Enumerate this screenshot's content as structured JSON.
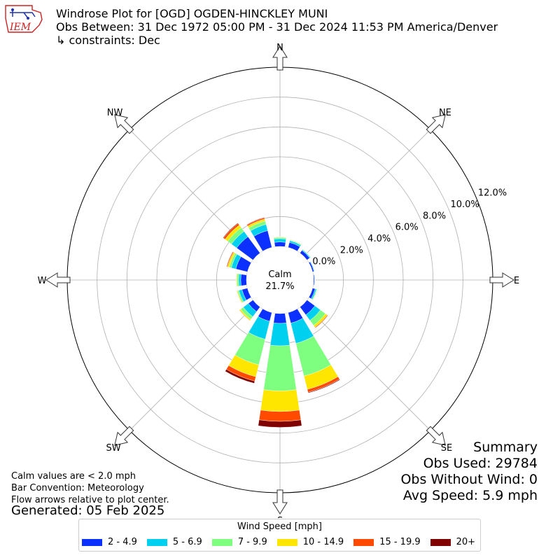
{
  "header": {
    "title_line1": "Windrose Plot for [OGD] OGDEN-HINCKLEY MUNI",
    "title_line2": "Obs Between: 31 Dec 1972 05:00 PM - 31 Dec 2024 11:53 PM America/Denver",
    "title_line3": "↳ constraints: Dec",
    "logo_text": "IEM"
  },
  "notes": {
    "line1": "Calm values are < 2.0 mph",
    "line2": "Bar Convention: Meteorology",
    "line3": "Flow arrows relative to plot center.",
    "generated": "Generated: 05 Feb 2025"
  },
  "summary": {
    "heading": "Summary",
    "obs_used": "Obs Used: 29784",
    "obs_without_wind": "Obs Without Wind: 0",
    "avg_speed": "Avg Speed: 5.9 mph"
  },
  "chart_data": {
    "type": "windrose",
    "calm_label": "Calm",
    "calm_value": "21.7%",
    "directions": [
      "N",
      "NNE",
      "NE",
      "ENE",
      "E",
      "ESE",
      "SE",
      "SSE",
      "S",
      "SSW",
      "SW",
      "WSW",
      "W",
      "WNW",
      "NW",
      "NNW"
    ],
    "direction_labels": [
      "N",
      "NE",
      "E",
      "SE",
      "S",
      "SW",
      "W",
      "NW"
    ],
    "radial_ticks": [
      "0.0%",
      "2.0%",
      "4.0%",
      "6.0%",
      "8.0%",
      "10.0%",
      "12.0%"
    ],
    "radial_max": 12.0,
    "legend_title": "Wind Speed [mph]",
    "bins": [
      {
        "label": "2 - 4.9",
        "color": "#0c31ff"
      },
      {
        "label": "5 - 6.9",
        "color": "#00d0f0"
      },
      {
        "label": "7 - 9.9",
        "color": "#7fff7f"
      },
      {
        "label": "10 - 14.9",
        "color": "#ffe600"
      },
      {
        "label": "15 - 19.9",
        "color": "#ff4a00"
      },
      {
        "label": "20+",
        "color": "#800000"
      }
    ],
    "cumulative": {
      "N": [
        0.3,
        0.52,
        0.61,
        0.64,
        0.65,
        0.65
      ],
      "NNE": [
        0.35,
        0.47,
        0.52,
        0.54,
        0.55,
        0.55
      ],
      "NE": [
        0.22,
        0.28,
        0.31,
        0.32,
        0.33,
        0.33
      ],
      "ENE": [
        0.1,
        0.14,
        0.16,
        0.17,
        0.17,
        0.17
      ],
      "E": [
        0.06,
        0.09,
        0.1,
        0.11,
        0.11,
        0.11
      ],
      "ESE": [
        0.18,
        0.27,
        0.32,
        0.34,
        0.35,
        0.35
      ],
      "SE": [
        0.66,
        1.12,
        1.54,
        1.69,
        1.74,
        1.75
      ],
      "SSE": [
        0.73,
        2.13,
        4.38,
        5.3,
        5.5,
        5.55
      ],
      "S": [
        0.66,
        2.16,
        5.18,
        6.56,
        7.22,
        7.62
      ],
      "SSW": [
        0.6,
        1.84,
        3.61,
        4.43,
        4.73,
        4.88
      ],
      "SW": [
        0.39,
        0.81,
        1.03,
        1.12,
        1.14,
        1.15
      ],
      "WSW": [
        0.38,
        0.59,
        0.69,
        0.74,
        0.75,
        0.75
      ],
      "W": [
        0.38,
        0.53,
        0.64,
        0.69,
        0.7,
        0.7
      ],
      "WNW": [
        0.8,
        1.11,
        1.25,
        1.37,
        1.43,
        1.45
      ],
      "NW": [
        1.36,
        1.8,
        2.11,
        2.33,
        2.46,
        2.5
      ],
      "NNW": [
        1.16,
        1.59,
        1.82,
        1.96,
        2.05,
        2.08
      ]
    }
  }
}
